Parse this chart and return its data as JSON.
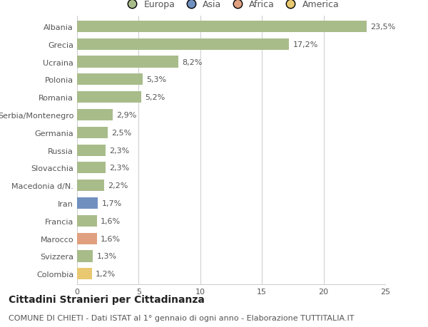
{
  "categories": [
    "Albania",
    "Grecia",
    "Ucraina",
    "Polonia",
    "Romania",
    "Serbia/Montenegro",
    "Germania",
    "Russia",
    "Slovacchia",
    "Macedonia d/N.",
    "Iran",
    "Francia",
    "Marocco",
    "Svizzera",
    "Colombia"
  ],
  "values": [
    23.5,
    17.2,
    8.2,
    5.3,
    5.2,
    2.9,
    2.5,
    2.3,
    2.3,
    2.2,
    1.7,
    1.6,
    1.6,
    1.3,
    1.2
  ],
  "labels": [
    "23,5%",
    "17,2%",
    "8,2%",
    "5,3%",
    "5,2%",
    "2,9%",
    "2,5%",
    "2,3%",
    "2,3%",
    "2,2%",
    "1,7%",
    "1,6%",
    "1,6%",
    "1,3%",
    "1,2%"
  ],
  "bar_colors": [
    "#a8bc8a",
    "#a8bc8a",
    "#a8bc8a",
    "#a8bc8a",
    "#a8bc8a",
    "#a8bc8a",
    "#a8bc8a",
    "#a8bc8a",
    "#a8bc8a",
    "#a8bc8a",
    "#7090c0",
    "#a8bc8a",
    "#e0a080",
    "#a8bc8a",
    "#e8c870"
  ],
  "legend_labels": [
    "Europa",
    "Asia",
    "Africa",
    "America"
  ],
  "legend_colors": [
    "#a8bc8a",
    "#7090c0",
    "#e0a080",
    "#e8c870"
  ],
  "title": "Cittadini Stranieri per Cittadinanza",
  "subtitle": "COMUNE DI CHIETI - Dati ISTAT al 1° gennaio di ogni anno - Elaborazione TUTTITALIA.IT",
  "xlim": [
    0,
    25
  ],
  "xticks": [
    0,
    5,
    10,
    15,
    20,
    25
  ],
  "background_color": "#ffffff",
  "grid_color": "#cccccc",
  "bar_height": 0.65,
  "title_fontsize": 10,
  "subtitle_fontsize": 8,
  "label_fontsize": 8,
  "tick_fontsize": 8,
  "legend_fontsize": 9,
  "text_color": "#555555"
}
